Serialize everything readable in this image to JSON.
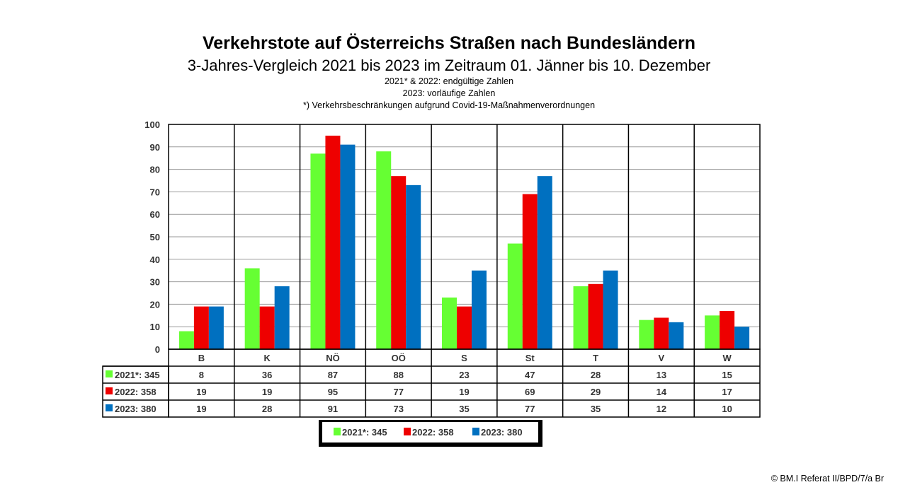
{
  "chart_data": {
    "type": "bar",
    "title": "Verkehrstote auf Österreichs Straßen nach Bundesländern",
    "subtitle": "3-Jahres-Vergleich 2021 bis 2023 im Zeitraum 01. Jänner bis 10. Dezember",
    "notes": [
      "2021* & 2022: endgültige Zahlen",
      "2023: vorläufige Zahlen",
      "*) Verkehrsbeschränkungen aufgrund Covid-19-Maßnahmenverordnungen"
    ],
    "categories": [
      "B",
      "K",
      "NÖ",
      "OÖ",
      "S",
      "St",
      "T",
      "V",
      "W"
    ],
    "series": [
      {
        "name": "2021*: 345",
        "color": "#66ff33",
        "values": [
          8,
          36,
          87,
          88,
          23,
          47,
          28,
          13,
          15
        ]
      },
      {
        "name": "2022: 358",
        "color": "#ee0000",
        "values": [
          19,
          19,
          95,
          77,
          19,
          69,
          29,
          14,
          17
        ]
      },
      {
        "name": "2023: 380",
        "color": "#0070c0",
        "values": [
          19,
          28,
          91,
          73,
          35,
          77,
          35,
          12,
          10
        ]
      }
    ],
    "ylim": [
      0,
      100
    ],
    "yticks": [
      0,
      10,
      20,
      30,
      40,
      50,
      60,
      70,
      80,
      90,
      100
    ],
    "grid": true,
    "legend": "bottom-center"
  },
  "copyright": "© BM.I Referat II/BPD/7/a Br"
}
